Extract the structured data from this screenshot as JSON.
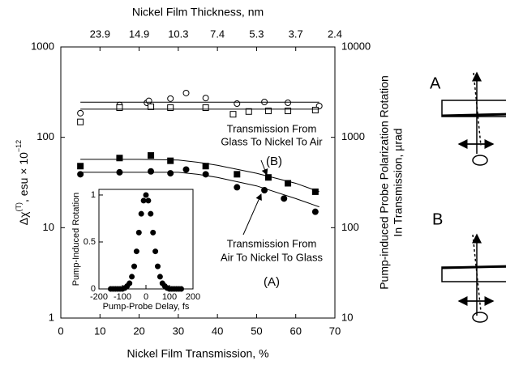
{
  "chart_data": [
    {
      "type": "scatter",
      "xlabel": "Nickel Film Transmission, %",
      "x2label": "Nickel Film Thickness, nm",
      "ylabel_parts": [
        "Δχ",
        "(T)",
        ", esu × 10",
        "−12"
      ],
      "y2label_lines": [
        "Pump-induced Probe Polarization Rotation",
        "In Transmission, µrad"
      ],
      "xlim": [
        0,
        70
      ],
      "xticks": [
        0,
        10,
        20,
        30,
        40,
        50,
        60,
        70
      ],
      "x2ticks": [
        {
          "value": 10,
          "label": "23.9"
        },
        {
          "value": 20,
          "label": "14.9"
        },
        {
          "value": 30,
          "label": "10.3"
        },
        {
          "value": 40,
          "label": "7.4"
        },
        {
          "value": 50,
          "label": "5.3"
        },
        {
          "value": 60,
          "label": "3.7"
        },
        {
          "value": 70,
          "label": "2.4"
        }
      ],
      "ylim": [
        1,
        1000
      ],
      "yticks": [
        1,
        10,
        100,
        1000
      ],
      "y2lim": [
        10,
        10000
      ],
      "y2ticks": [
        10,
        100,
        1000,
        10000
      ],
      "yscale": "log",
      "series": [
        {
          "style": "open-circle",
          "color": "#000",
          "x": [
            5,
            15,
            22,
            22.5,
            28,
            32,
            37,
            45,
            52,
            58,
            66
          ],
          "values": [
            185,
            228,
            241,
            253,
            268,
            309,
            272,
            236,
            246,
            241,
            222
          ]
        },
        {
          "style": "open-square",
          "color": "#000",
          "x": [
            5,
            15,
            23,
            28,
            37,
            44,
            48,
            53,
            58,
            65
          ],
          "values": [
            148,
            213,
            218,
            213,
            213,
            180,
            193,
            196,
            196,
            200
          ]
        },
        {
          "style": "filled-square",
          "color": "#000",
          "x": [
            5,
            15,
            23,
            28,
            37,
            45,
            53,
            58,
            65
          ],
          "values": [
            48,
            59,
            63,
            55,
            48,
            39,
            36,
            31,
            25
          ]
        },
        {
          "style": "filled-circle",
          "color": "#000",
          "x": [
            5,
            15,
            23,
            28,
            32,
            37,
            45,
            52,
            57,
            65
          ],
          "values": [
            39,
            41,
            42,
            40,
            44,
            39,
            28,
            26,
            21,
            15
          ]
        },
        {
          "style": "line",
          "color": "#000",
          "x": [
            5,
            66
          ],
          "values": [
            245,
            245
          ]
        },
        {
          "style": "line",
          "color": "#000",
          "x": [
            5,
            66
          ],
          "values": [
            205,
            205
          ]
        },
        {
          "style": "line",
          "color": "#000",
          "x": [
            5,
            10,
            20,
            30,
            35,
            40,
            50,
            60,
            66
          ],
          "values": [
            57,
            57,
            57,
            56,
            53,
            49,
            40,
            31,
            25
          ]
        },
        {
          "style": "line",
          "color": "#000",
          "x": [
            5,
            10,
            20,
            30,
            35,
            40,
            50,
            60,
            66
          ],
          "values": [
            41,
            41,
            41,
            41,
            39,
            36,
            29,
            21,
            17
          ]
        }
      ],
      "annotations": [
        "Transmission From",
        "Glass To Nickel To Air",
        "(B)",
        "Transmission From",
        "Air To Nickel To Glass",
        "(A)"
      ]
    },
    {
      "type": "scatter",
      "xlabel": "Pump-Probe Delay, fs",
      "ylabel": "Pump-Induced Rotation",
      "xlim": [
        -200,
        200
      ],
      "xticks": [
        -200,
        -100,
        0,
        100,
        200
      ],
      "ylim": [
        0,
        1.06
      ],
      "yticks": [
        0,
        0.5,
        1
      ],
      "yscale": "linear",
      "series": [
        {
          "style": "filled-circle",
          "color": "#000",
          "x": [
            -150,
            -140,
            -130,
            -120,
            -110,
            -100,
            -90,
            -80,
            -70,
            -60,
            -50,
            -40,
            -30,
            -20,
            -10,
            0,
            10,
            20,
            30,
            40,
            50,
            60,
            70,
            80,
            90,
            100,
            110,
            120,
            130,
            140,
            150
          ],
          "values": [
            0,
            0,
            0,
            0,
            0,
            0,
            0.01,
            0.03,
            0.06,
            0.13,
            0.24,
            0.4,
            0.6,
            0.8,
            0.94,
            1,
            0.94,
            0.8,
            0.6,
            0.4,
            0.24,
            0.13,
            0.06,
            0.03,
            0.01,
            0,
            0,
            0,
            0,
            0,
            0
          ]
        }
      ]
    }
  ],
  "diagram": {
    "labels": [
      "A",
      "B"
    ]
  }
}
